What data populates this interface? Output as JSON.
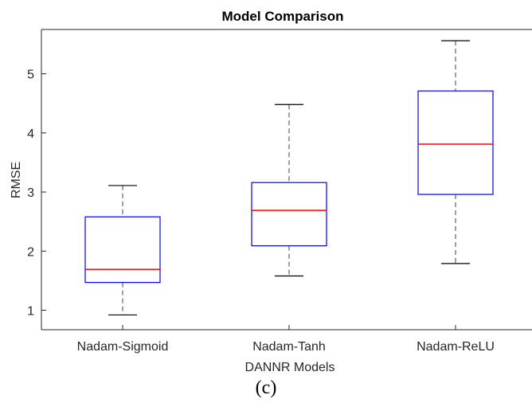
{
  "caption": "(c)",
  "colors": {
    "box": "#0000ff",
    "median": "#ff0000",
    "whisker": "#808080",
    "cap": "#000000",
    "axis": "#262626"
  },
  "chart_data": {
    "type": "box",
    "title": "Model Comparison",
    "xlabel": "DANNR Models",
    "ylabel": "RMSE",
    "categories": [
      "Nadam-Sigmoid",
      "Nadam-Tanh",
      "Nadam-ReLU"
    ],
    "ylim": [
      0.67,
      5.75
    ],
    "yticks": [
      1,
      2,
      3,
      4,
      5
    ],
    "grid": false,
    "boxes": [
      {
        "name": "Nadam-Sigmoid",
        "min": 0.92,
        "q1": 1.47,
        "median": 1.69,
        "q3": 2.58,
        "max": 3.11
      },
      {
        "name": "Nadam-Tanh",
        "min": 1.58,
        "q1": 2.09,
        "median": 2.69,
        "q3": 3.16,
        "max": 4.48
      },
      {
        "name": "Nadam-ReLU",
        "min": 1.79,
        "q1": 2.96,
        "median": 3.81,
        "q3": 4.71,
        "max": 5.56
      }
    ]
  }
}
